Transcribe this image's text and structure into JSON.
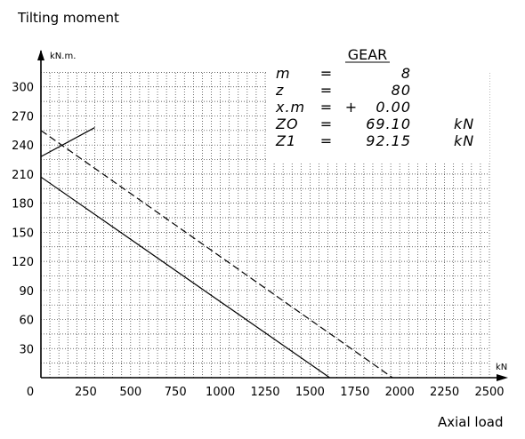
{
  "chart_data": {
    "type": "line",
    "ylabel": "Tilting moment",
    "ylabel_unit": "kN.m.",
    "xlabel": "Axial load",
    "xlabel_unit": "kN",
    "xlim": [
      0,
      2500
    ],
    "ylim": [
      0,
      330
    ],
    "x_ticks": [
      "0",
      "250",
      "500",
      "750",
      "1000",
      "1250",
      "1500",
      "1750",
      "2000",
      "2250",
      "2500"
    ],
    "y_ticks": [
      "30",
      "60",
      "90",
      "120",
      "150",
      "180",
      "210",
      "240",
      "270",
      "300"
    ],
    "grid": "dotted",
    "series": [
      {
        "style": "solid",
        "points": [
          [
            0,
            207
          ],
          [
            1610,
            0
          ]
        ]
      },
      {
        "style": "dashed",
        "points": [
          [
            0,
            255
          ],
          [
            1960,
            0
          ]
        ]
      },
      {
        "style": "solid",
        "points": [
          [
            0,
            228
          ],
          [
            300,
            258
          ]
        ]
      }
    ],
    "annotation": {
      "title": "GEAR",
      "rows": [
        {
          "label": "m",
          "eq": "=",
          "sign": "",
          "value": "8",
          "unit": ""
        },
        {
          "label": "z",
          "eq": "=",
          "sign": "",
          "value": "80",
          "unit": ""
        },
        {
          "label": "x.m",
          "eq": "=",
          "sign": "+",
          "value": "0.00",
          "unit": ""
        },
        {
          "label": "ZO",
          "eq": "=",
          "sign": "",
          "value": "69.10",
          "unit": "kN"
        },
        {
          "label": "Z1",
          "eq": "=",
          "sign": "",
          "value": "92.15",
          "unit": "kN"
        }
      ]
    }
  }
}
